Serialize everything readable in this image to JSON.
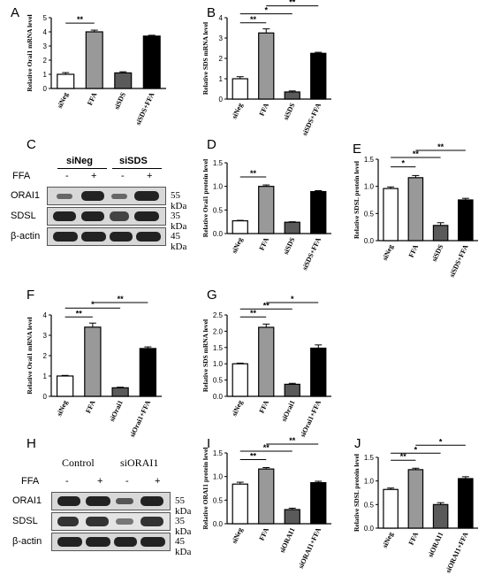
{
  "panels": {
    "A": "A",
    "B": "B",
    "C": "C",
    "D": "D",
    "E": "E",
    "F": "F",
    "G": "G",
    "H": "H",
    "I": "I",
    "J": "J"
  },
  "chart_data": [
    {
      "id": "A",
      "type": "bar",
      "ylabel": "Relative Orai1 mRNA level",
      "ylim": [
        0,
        5
      ],
      "ticks": [
        0,
        1,
        2,
        3,
        4,
        5
      ],
      "categories": [
        "siNeg",
        "FFA",
        "siSDS",
        "siSDS+FFA"
      ],
      "values": [
        1.0,
        4.0,
        1.1,
        3.7
      ],
      "errors": [
        0.12,
        0.12,
        0.08,
        0.06
      ],
      "fills": [
        "#ffffff",
        "#999999",
        "#5a5a5a",
        "#000000"
      ],
      "sig": [
        {
          "from": 0,
          "to": 1,
          "label": "**"
        }
      ]
    },
    {
      "id": "B",
      "type": "bar",
      "ylabel": "Relative SDS mRNA level",
      "ylim": [
        0,
        4
      ],
      "ticks": [
        0,
        1,
        2,
        3,
        4
      ],
      "categories": [
        "siNeg",
        "FFA",
        "siSDS",
        "siSDS+FFA"
      ],
      "values": [
        1.0,
        3.25,
        0.35,
        2.25
      ],
      "errors": [
        0.1,
        0.2,
        0.05,
        0.05
      ],
      "fills": [
        "#ffffff",
        "#999999",
        "#5a5a5a",
        "#000000"
      ],
      "sig": [
        {
          "from": 0,
          "to": 1,
          "label": "**"
        },
        {
          "from": 0,
          "to": 2,
          "label": "*"
        },
        {
          "from": 1,
          "to": 3,
          "label": "**"
        }
      ]
    },
    {
      "id": "D",
      "type": "bar",
      "ylabel": "Relative Orai1 protein level",
      "ylim": [
        0,
        1.5
      ],
      "ticks": [
        0.0,
        0.5,
        1.0,
        1.5
      ],
      "categories": [
        "siNeg",
        "FFA",
        "siSDS",
        "siSDS+FFA"
      ],
      "values": [
        0.27,
        1.0,
        0.24,
        0.89
      ],
      "errors": [
        0.01,
        0.03,
        0.01,
        0.02
      ],
      "fills": [
        "#ffffff",
        "#999999",
        "#5a5a5a",
        "#000000"
      ],
      "sig": [
        {
          "from": 0,
          "to": 1,
          "label": "**"
        }
      ]
    },
    {
      "id": "E",
      "type": "bar",
      "ylabel": "Relative SDSL protein level",
      "ylim": [
        0,
        1.5
      ],
      "ticks": [
        0.0,
        0.5,
        1.0,
        1.5
      ],
      "categories": [
        "siNeg",
        "FFA",
        "siSDS",
        "siSDS+FFA"
      ],
      "values": [
        0.96,
        1.16,
        0.28,
        0.75
      ],
      "errors": [
        0.03,
        0.04,
        0.05,
        0.03
      ],
      "fills": [
        "#ffffff",
        "#999999",
        "#5a5a5a",
        "#000000"
      ],
      "sig": [
        {
          "from": 0,
          "to": 1,
          "label": "*"
        },
        {
          "from": 0,
          "to": 2,
          "label": "**"
        },
        {
          "from": 1,
          "to": 3,
          "label": "**"
        }
      ]
    },
    {
      "id": "F",
      "type": "bar",
      "ylabel": "Relative Orai1 mRNA level",
      "ylim": [
        0,
        4
      ],
      "ticks": [
        0,
        1,
        2,
        3,
        4
      ],
      "categories": [
        "siNeg",
        "FFA",
        "siOrai1",
        "siOrai1+FFA"
      ],
      "values": [
        1.0,
        3.4,
        0.42,
        2.35
      ],
      "errors": [
        0.03,
        0.2,
        0.03,
        0.08
      ],
      "fills": [
        "#ffffff",
        "#999999",
        "#5a5a5a",
        "#000000"
      ],
      "sig": [
        {
          "from": 0,
          "to": 1,
          "label": "**"
        },
        {
          "from": 0,
          "to": 2,
          "label": "*"
        },
        {
          "from": 1,
          "to": 3,
          "label": "**"
        }
      ]
    },
    {
      "id": "G",
      "type": "bar",
      "ylabel": "Relative SDS mRNA level",
      "ylim": [
        0,
        2.5
      ],
      "ticks": [
        0.0,
        0.5,
        1.0,
        1.5,
        2.0,
        2.5
      ],
      "categories": [
        "siNeg",
        "FFA",
        "siOrai1",
        "siOrai1+FFA"
      ],
      "values": [
        1.0,
        2.12,
        0.37,
        1.48
      ],
      "errors": [
        0.02,
        0.1,
        0.03,
        0.1
      ],
      "fills": [
        "#ffffff",
        "#999999",
        "#5a5a5a",
        "#000000"
      ],
      "sig": [
        {
          "from": 0,
          "to": 1,
          "label": "**"
        },
        {
          "from": 0,
          "to": 2,
          "label": "**"
        },
        {
          "from": 1,
          "to": 3,
          "label": "*"
        }
      ]
    },
    {
      "id": "I",
      "type": "bar",
      "ylabel": "Relative ORAI1 protein level",
      "ylim": [
        0,
        1.5
      ],
      "ticks": [
        0.0,
        0.5,
        1.0,
        1.5
      ],
      "categories": [
        "siNeg",
        "FFA",
        "siORAI1",
        "siORAI1+FFA"
      ],
      "values": [
        0.84,
        1.16,
        0.3,
        0.87
      ],
      "errors": [
        0.04,
        0.03,
        0.03,
        0.03
      ],
      "fills": [
        "#ffffff",
        "#999999",
        "#5a5a5a",
        "#000000"
      ],
      "sig": [
        {
          "from": 0,
          "to": 1,
          "label": "**"
        },
        {
          "from": 0,
          "to": 2,
          "label": "**"
        },
        {
          "from": 1,
          "to": 3,
          "label": "**"
        }
      ]
    },
    {
      "id": "J",
      "type": "bar",
      "ylabel": "Relative SDSL protein level",
      "ylim": [
        0,
        1.5
      ],
      "ticks": [
        0.0,
        0.5,
        1.0,
        1.5
      ],
      "categories": [
        "siNeg",
        "FFA",
        "siORAI1",
        "siORAI1+FFA"
      ],
      "values": [
        0.82,
        1.24,
        0.5,
        1.05
      ],
      "errors": [
        0.03,
        0.03,
        0.04,
        0.04
      ],
      "fills": [
        "#ffffff",
        "#999999",
        "#5a5a5a",
        "#000000"
      ],
      "sig": [
        {
          "from": 0,
          "to": 1,
          "label": "**"
        },
        {
          "from": 0,
          "to": 2,
          "label": "*"
        },
        {
          "from": 1,
          "to": 3,
          "label": "*"
        }
      ]
    }
  ],
  "blotC": {
    "groups": [
      "siNeg",
      "siSDS"
    ],
    "ffa_label": "FFA",
    "ffa_marks": [
      "-",
      "+",
      "-",
      "+"
    ],
    "rows": [
      {
        "name": "ORAI1",
        "kda": "55 kDa"
      },
      {
        "name": "SDSL",
        "kda": "35 kDa"
      },
      {
        "name": "β-actin",
        "kda": "45 kDa"
      }
    ]
  },
  "blotH": {
    "groups": [
      "Control",
      "siORAI1"
    ],
    "ffa_label": "FFA",
    "ffa_marks": [
      "-",
      "+",
      "-",
      "+"
    ],
    "rows": [
      {
        "name": "ORAI1",
        "kda": "55 kDa"
      },
      {
        "name": "SDSL",
        "kda": "35 kDa"
      },
      {
        "name": "β-actin",
        "kda": "45 kDa"
      }
    ]
  }
}
